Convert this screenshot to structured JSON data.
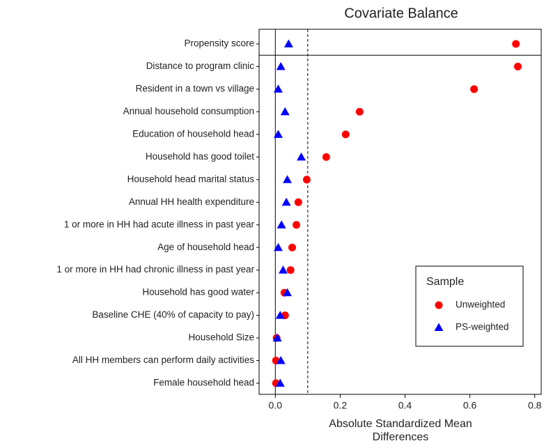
{
  "chart_data": {
    "type": "dot",
    "title": "Covariate Balance",
    "xlabel": "Absolute Standardized Mean Differences",
    "categories": [
      "Propensity score",
      "Distance to program clinic",
      "Resident in a town vs village",
      "Annual household consumption",
      "Education of household head",
      "Household has good toilet",
      "Household head marital status",
      "Annual HH health expenditure",
      "1 or more in HH had acute illness in past year",
      "Age of household head",
      "1 or more in HH had chronic illness in past year",
      "Household has good water",
      "Baseline CHE (40% of capacity to pay)",
      "Household Size",
      "All HH members can perform daily activities",
      "Female household head"
    ],
    "series": [
      {
        "name": "Unweighted",
        "color": "#ff0000",
        "marker": "circle",
        "values": [
          0.742,
          0.748,
          0.613,
          0.26,
          0.217,
          0.157,
          0.097,
          0.071,
          0.065,
          0.052,
          0.047,
          0.028,
          0.03,
          0.004,
          0.002,
          0.002
        ]
      },
      {
        "name": "PS-weighted",
        "color": "#0000ff",
        "marker": "triangle",
        "values": [
          0.041,
          0.017,
          0.009,
          0.03,
          0.009,
          0.08,
          0.037,
          0.034,
          0.019,
          0.009,
          0.024,
          0.037,
          0.015,
          0.006,
          0.017,
          0.015
        ]
      }
    ],
    "legend_title": "Sample",
    "legend": "lower right",
    "xlim": [
      -0.05,
      0.82
    ],
    "xticks": [
      {
        "value": 0,
        "label": "0.0"
      },
      0.2,
      0.4,
      0.6,
      0.8
    ],
    "threshold": 0.1
  }
}
